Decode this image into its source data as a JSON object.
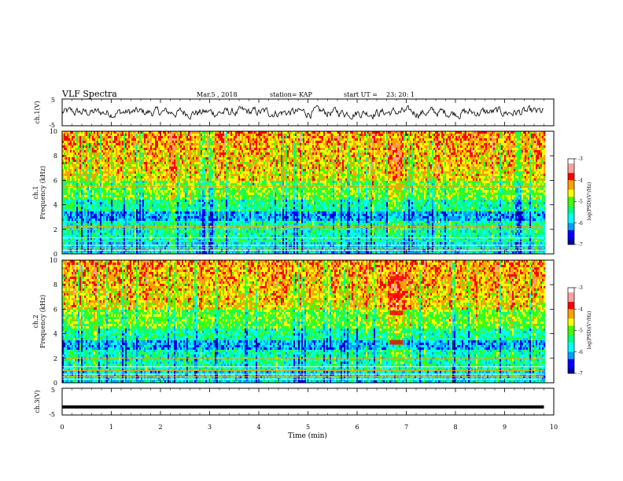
{
  "header": {
    "title": "VLF Spectra",
    "date": "Mar.5 , 2018",
    "station": "station= KAP",
    "start": "start UT =",
    "start_time": "23: 20: 1"
  },
  "colors": {
    "colormap": [
      "#0000a0",
      "#0000ff",
      "#00a0ff",
      "#00ffff",
      "#00ff80",
      "#40ff00",
      "#ffff00",
      "#ffa000",
      "#ff0000",
      "#ffa0a0",
      "#ffffff"
    ]
  },
  "chart_data": [
    {
      "type": "line",
      "panel": "ch1-waveform",
      "ylabel": "ch.1(V)",
      "ylim": [
        -5,
        5
      ],
      "yticks": [
        "5",
        "-5"
      ],
      "xlim": [
        0,
        10
      ],
      "description_series": "noisy waveform roughly between -2 and 2 V"
    },
    {
      "type": "heatmap",
      "panel": "ch1-spectrogram",
      "ylabel": "ch.1\nFrequency (kHz)",
      "ylabel_a": "ch.1",
      "ylabel_b": "Frequency (kHz)",
      "ylim": [
        0,
        10
      ],
      "yticks": [
        "0",
        "2",
        "4",
        "6",
        "8",
        "10"
      ],
      "xlim": [
        0,
        10
      ],
      "colorbar": {
        "label": "log(PSD)(V²/Hz)",
        "range": [
          -7,
          -3
        ],
        "ticks": [
          "-3",
          "-4",
          "-5",
          "-6",
          "-7"
        ]
      },
      "notable_lines_khz": [
        0.5,
        1.0,
        2.0,
        2.2,
        5.5
      ],
      "burst_minutes": [
        6.6,
        7.0
      ]
    },
    {
      "type": "heatmap",
      "panel": "ch2-spectrogram",
      "ylabel_a": "ch.2",
      "ylabel_b": "Frequency (kHz)",
      "ylim": [
        0,
        10
      ],
      "yticks": [
        "0",
        "2",
        "4",
        "6",
        "8",
        "10"
      ],
      "xlim": [
        0,
        10
      ],
      "colorbar": {
        "label": "log(PSD)(V²/Hz)",
        "range": [
          -7,
          -3
        ],
        "ticks": [
          "-3",
          "-4",
          "-5",
          "-6",
          "-7"
        ]
      },
      "burst_minutes": [
        6.6,
        7.0
      ],
      "burst_lines_khz": [
        3.3,
        5.7,
        7.1,
        8.5
      ]
    },
    {
      "type": "line",
      "panel": "ch3-waveform",
      "ylabel": "ch.3(V)",
      "ylim": [
        -5,
        5
      ],
      "yticks": [
        "5",
        "-5"
      ],
      "xlim": [
        0,
        10
      ],
      "constant_value": -2
    }
  ],
  "xaxis": {
    "label": "Time (min)",
    "ticks": [
      "0",
      "1",
      "2",
      "3",
      "4",
      "5",
      "6",
      "7",
      "8",
      "9",
      "10"
    ],
    "data_end_minutes": 9.8
  }
}
